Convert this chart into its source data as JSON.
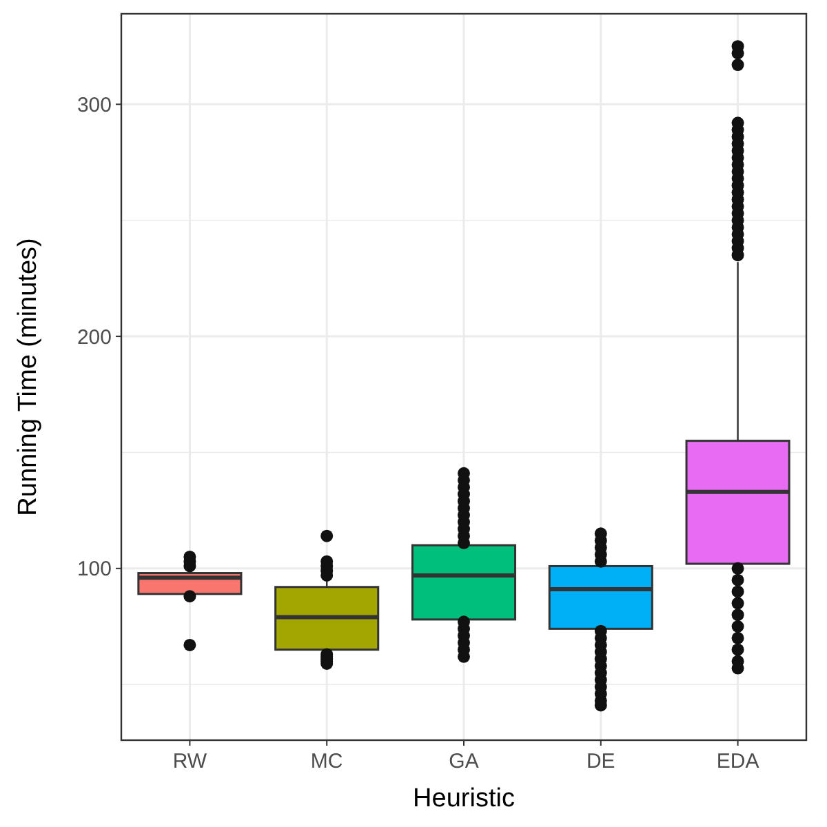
{
  "chart_data": {
    "type": "box",
    "xlabel": "Heuristic",
    "ylabel": "Running Time (minutes)",
    "categories": [
      "RW",
      "MC",
      "GA",
      "DE",
      "EDA"
    ],
    "colors": [
      "#f8766d",
      "#a3a500",
      "#00bf7d",
      "#00b0f6",
      "#e76bf3"
    ],
    "boxes": [
      {
        "low": 88,
        "q1": 89,
        "median": 96,
        "q3": 98,
        "high": 102,
        "outliers": [
          105,
          103,
          101,
          88,
          67
        ]
      },
      {
        "low": 64,
        "q1": 65,
        "median": 79,
        "q3": 92,
        "high": 96,
        "outliers": [
          114,
          103,
          101,
          99,
          97,
          63,
          62,
          61,
          60,
          59
        ]
      },
      {
        "low": 62,
        "q1": 78,
        "median": 97,
        "q3": 110,
        "high": 141,
        "outliers": [
          141,
          138,
          135,
          132,
          129,
          126,
          123,
          120,
          117,
          114,
          111,
          77,
          74,
          71,
          68,
          65,
          62
        ]
      },
      {
        "low": 41,
        "q1": 74,
        "median": 91,
        "q3": 101,
        "high": 115,
        "outliers": [
          115,
          112,
          109,
          106,
          103,
          73,
          70,
          67,
          64,
          61,
          58,
          55,
          52,
          49,
          46,
          43,
          41
        ]
      },
      {
        "low": 57,
        "q1": 102,
        "median": 133,
        "q3": 155,
        "high": 232,
        "outliers": [
          325,
          322,
          317,
          292,
          289,
          286,
          283,
          280,
          277,
          274,
          271,
          268,
          265,
          262,
          259,
          256,
          253,
          250,
          247,
          244,
          241,
          238,
          235,
          100,
          95,
          90,
          85,
          80,
          75,
          70,
          65,
          60,
          57
        ]
      }
    ],
    "ylim": [
      26,
      339
    ],
    "yticks": [
      {
        "value": 50,
        "label": null
      },
      100,
      {
        "value": 150,
        "label": null
      },
      200,
      {
        "value": 250,
        "label": null
      },
      300
    ],
    "grid": true
  }
}
